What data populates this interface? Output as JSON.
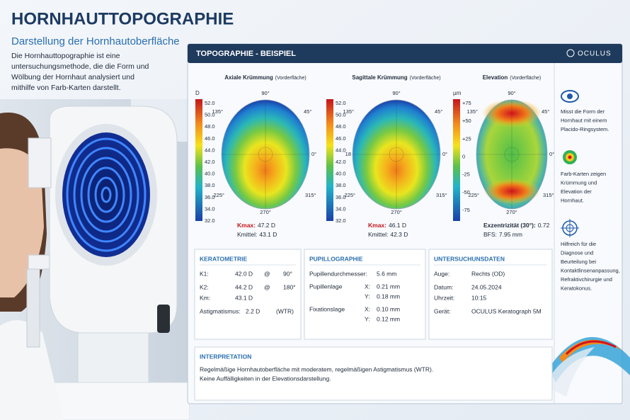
{
  "header": {
    "title": "HORNHAUTTOPOGRAPHIE",
    "subtitle": "Darstellung der Hornhautoberfläche",
    "description": [
      "Die Hornhauttopographie ist eine",
      "untersuchungsmethode, die die Form und",
      "Wölbung der Hornhaut analysiert und",
      "mithilfe von Farb-Karten darstellt."
    ]
  },
  "panel": {
    "title": "TOPOGRAPHIE - BEISPIEL",
    "brand": "OCULUS",
    "maps": [
      {
        "title": "Axiale Krümmung",
        "qualifier": "(Vorderfläche)",
        "unit": "D",
        "scale": [
          "52.0",
          "50.0",
          "48.0",
          "46.0",
          "44.0",
          "42.0",
          "40.0",
          "38.0",
          "36.0",
          "34.0",
          "32.0"
        ],
        "angles": [
          "90°",
          "45°",
          "0°",
          "315°",
          "270°",
          "225°",
          "135°"
        ],
        "stats": [
          {
            "label": "Kmax:",
            "value": "47.2 D"
          },
          {
            "label": "Kmittel:",
            "value": "43.1 D"
          }
        ]
      },
      {
        "title": "Sagittale Krümmung",
        "qualifier": "(Vorderfläche)",
        "scale": [
          "52.0",
          "50.0",
          "48.0",
          "46.0",
          "44.0",
          "42.0",
          "40.0",
          "38.0",
          "36.0",
          "34.0",
          "32.0"
        ],
        "angles": [
          "90°",
          "45°",
          "0°",
          "315°",
          "270°",
          "225°",
          "135°"
        ],
        "left": "18",
        "stats": [
          {
            "label": "Kmax:",
            "value": "46.1 D"
          },
          {
            "label": "Kmittel:",
            "value": "42.3 D"
          }
        ]
      },
      {
        "title": "Elevation",
        "qualifier": "(Vorderfläche)",
        "unit": "µm",
        "scale": [
          "+75",
          "+50",
          "+25",
          "0",
          "-25",
          "-50",
          "-75"
        ],
        "angles": [
          "90°",
          "45°",
          "0°",
          "315°",
          "270°",
          "225°",
          "135°"
        ],
        "stats": [
          {
            "label": "Exzentrizität (30°):",
            "value": "0.72"
          },
          {
            "label": "BFS:",
            "value": "7.95 mm"
          }
        ]
      }
    ],
    "sidebar": [
      [
        "Misst die Form der",
        "Hornhaut mit einem",
        "Placido-Ringsystem."
      ],
      [
        "Farb-Karten zeigen",
        "Krümmung und",
        "Elevation der",
        "Hornhaut."
      ],
      [
        "Hilfreich für die",
        "Diagnose und",
        "Beurteilung bei",
        "Kontaktlinsenanpassung,",
        "Refraktivchirurgie und",
        "Keratokonus."
      ]
    ],
    "boxes": [
      {
        "title": "KERATOMETRIE",
        "rows": [
          [
            "K1:",
            "42.0 D",
            "@",
            "90°"
          ],
          [
            "K2:",
            "44.2 D",
            "@",
            "180°"
          ],
          [
            "Km:",
            "43.1 D"
          ],
          [
            "Astigmatismus:",
            "2.2 D",
            "(WTR)"
          ]
        ]
      },
      {
        "title": "PUPILLOGRAPHIE",
        "rows": [
          [
            "Pupillendurchmesser:",
            "5.6 mm"
          ],
          [
            "Pupillenlage",
            "X:",
            "0.21 mm"
          ],
          [
            "Y:",
            "0.18 mm"
          ],
          [
            "Fixationslage",
            "X:",
            "0.10 mm"
          ],
          [
            "Y:",
            "0.12 mm"
          ]
        ]
      },
      {
        "title": "UNTERSUCHUNSDATEN",
        "rows": [
          [
            "Auge:",
            "Rechts (OD)"
          ],
          [
            "Datum:",
            "24.05.2024"
          ],
          [
            "Uhrzeit:",
            "10:15"
          ],
          [
            "Gerät:",
            "OCULUS Keratograph 5M"
          ]
        ]
      }
    ],
    "interpretation": {
      "title": "INTERPRETATION",
      "lines": [
        "Regelmäßige Hornhautoberfläche mit moderatem, regelmäßigen Astigmatismus (WTR).",
        "Keine Auffälligkeiten in der Elevationsdarstellung."
      ]
    }
  }
}
